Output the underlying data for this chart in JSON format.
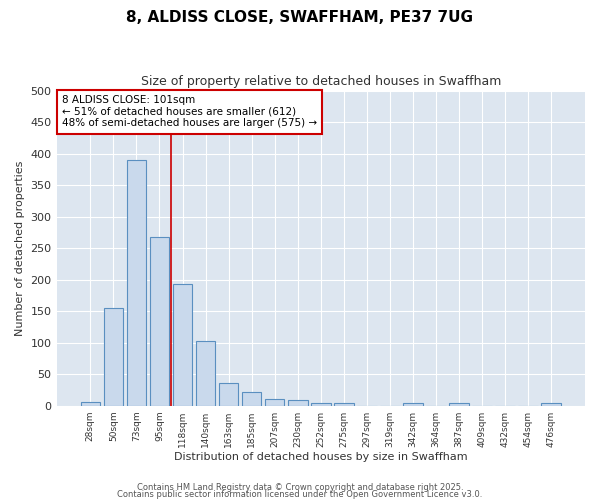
{
  "title": "8, ALDISS CLOSE, SWAFFHAM, PE37 7UG",
  "subtitle": "Size of property relative to detached houses in Swaffham",
  "xlabel": "Distribution of detached houses by size in Swaffham",
  "ylabel": "Number of detached properties",
  "bar_color": "#c9d9ec",
  "bar_edge_color": "#5a8fc0",
  "background_color": "#dde6f0",
  "fig_background_color": "#ffffff",
  "grid_color": "#ffffff",
  "bin_labels": [
    "28sqm",
    "50sqm",
    "73sqm",
    "95sqm",
    "118sqm",
    "140sqm",
    "163sqm",
    "185sqm",
    "207sqm",
    "230sqm",
    "252sqm",
    "275sqm",
    "297sqm",
    "319sqm",
    "342sqm",
    "364sqm",
    "387sqm",
    "409sqm",
    "432sqm",
    "454sqm",
    "476sqm"
  ],
  "bar_heights": [
    6,
    155,
    390,
    267,
    193,
    103,
    36,
    21,
    11,
    9,
    5,
    4,
    0,
    0,
    4,
    0,
    4,
    0,
    0,
    0,
    4
  ],
  "ylim": [
    0,
    500
  ],
  "yticks": [
    0,
    50,
    100,
    150,
    200,
    250,
    300,
    350,
    400,
    450,
    500
  ],
  "red_line_x": 3.5,
  "annotation_title": "8 ALDISS CLOSE: 101sqm",
  "annotation_line1": "← 51% of detached houses are smaller (612)",
  "annotation_line2": "48% of semi-detached houses are larger (575) →",
  "annotation_box_color": "#ffffff",
  "annotation_edge_color": "#cc0000",
  "footer1": "Contains HM Land Registry data © Crown copyright and database right 2025.",
  "footer2": "Contains public sector information licensed under the Open Government Licence v3.0."
}
